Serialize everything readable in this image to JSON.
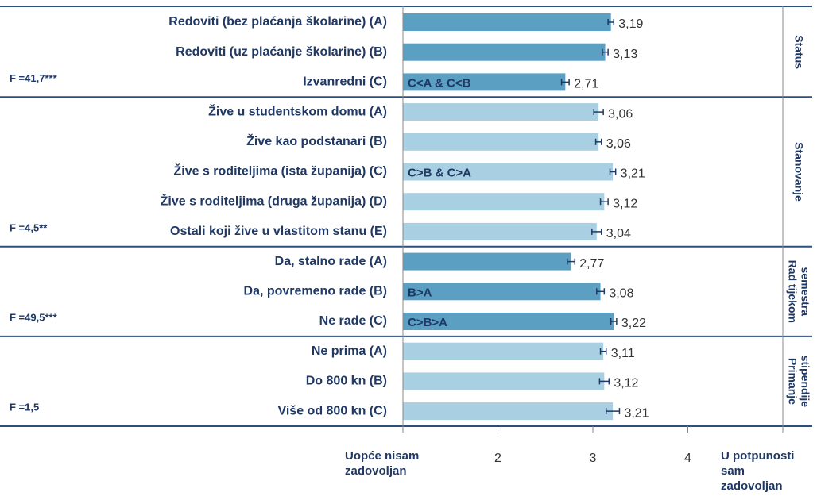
{
  "chart_data": {
    "type": "bar",
    "orientation": "horizontal",
    "xlim": [
      1,
      5
    ],
    "xticks": [
      {
        "value": 1,
        "label": [
          "Uopće nisam",
          "zadovoljan"
        ]
      },
      2,
      3,
      4,
      {
        "value": 5,
        "label": [
          "U potpunosti",
          "sam",
          "zadovoljan"
        ]
      }
    ],
    "groups": [
      {
        "name": [
          "Status"
        ],
        "stat": "F =41,7***",
        "color": "#5b9fc2",
        "categories": [
          "Redoviti (bez plaćanja školarine) (A)",
          "Redoviti (uz plaćanje školarine) (B)",
          "Izvanredni (C)"
        ],
        "values": [
          3.19,
          3.13,
          2.71
        ],
        "value_labels": [
          "3,19",
          "3,13",
          "2,71"
        ],
        "errors": [
          0.03,
          0.03,
          0.04
        ],
        "annotations": [
          null,
          null,
          "C<A & C<B"
        ]
      },
      {
        "name": [
          "Stanovanje"
        ],
        "stat": "F =4,5**",
        "color": "#a9d0e2",
        "categories": [
          "Žive u studentskom domu (A)",
          "Žive kao podstanari (B)",
          "Žive s roditeljima (ista županija) (C)",
          "Žive s roditeljima (druga županija) (D)",
          "Ostali koji žive u vlastitom stanu (E)"
        ],
        "values": [
          3.06,
          3.06,
          3.21,
          3.12,
          3.04
        ],
        "value_labels": [
          "3,06",
          "3,06",
          "3,21",
          "3,12",
          "3,04"
        ],
        "errors": [
          0.05,
          0.03,
          0.03,
          0.04,
          0.05
        ],
        "annotations": [
          null,
          null,
          "C>B & C>A",
          null,
          null
        ]
      },
      {
        "name": [
          "Rad tijekom",
          "semestra"
        ],
        "stat": "F =49,5***",
        "color": "#5b9fc2",
        "categories": [
          "Da, stalno rade (A)",
          "Da, povremeno rade (B)",
          "Ne rade (C)"
        ],
        "values": [
          2.77,
          3.08,
          3.22
        ],
        "value_labels": [
          "2,77",
          "3,08",
          "3,22"
        ],
        "errors": [
          0.04,
          0.04,
          0.03
        ],
        "annotations": [
          null,
          "B>A",
          "C>B>A"
        ]
      },
      {
        "name": [
          "Primanje",
          "stipendije"
        ],
        "stat": "F =1,5",
        "color": "#a9d0e2",
        "categories": [
          "Ne prima (A)",
          "Do 800 kn (B)",
          "Više od 800 kn (C)"
        ],
        "values": [
          3.11,
          3.12,
          3.21
        ],
        "value_labels": [
          "3,11",
          "3,12",
          "3,21"
        ],
        "errors": [
          0.03,
          0.05,
          0.07
        ],
        "annotations": [
          null,
          null,
          null
        ]
      }
    ]
  }
}
